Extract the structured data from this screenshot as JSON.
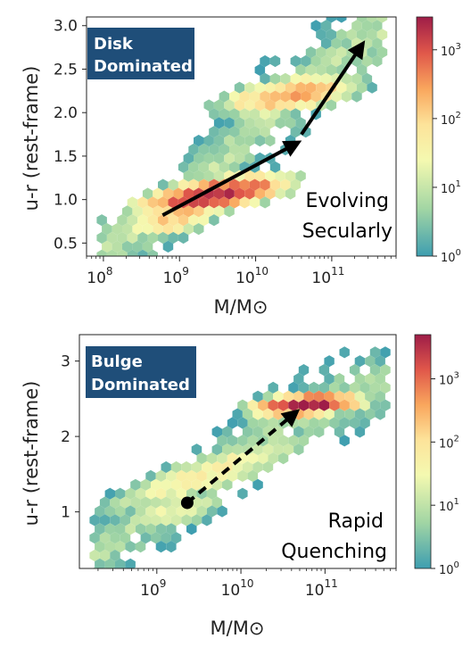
{
  "chart_data": [
    {
      "type": "heatmap",
      "panel": "top",
      "tag": [
        "Disk",
        "Dominated"
      ],
      "annotation": [
        "Evolving",
        "Secularly"
      ],
      "xlabel": "M/M⊙",
      "ylabel": "u-r (rest-frame)",
      "xscale": "log",
      "xlim": [
        60000000,
        700000000000
      ],
      "ylim": [
        0.35,
        3.1
      ],
      "xticks": [
        {
          "v": 100000000,
          "m": "10",
          "e": "8"
        },
        {
          "v": 1000000000,
          "m": "10",
          "e": "9"
        },
        {
          "v": 10000000000,
          "m": "10",
          "e": "10"
        },
        {
          "v": 100000000000,
          "m": "10",
          "e": "11"
        }
      ],
      "yticks": [
        "0.5",
        "1.0",
        "1.5",
        "2.0",
        "2.5",
        "3.0"
      ],
      "colorbar": {
        "scale": "log",
        "max": 3000,
        "ticks": [
          {
            "m": "10",
            "e": "0"
          },
          {
            "m": "10",
            "e": "1"
          },
          {
            "m": "10",
            "e": "2"
          },
          {
            "m": "10",
            "e": "3"
          }
        ]
      },
      "arrows": [
        {
          "style": "solid",
          "from": [
            600000000,
            0.82
          ],
          "to": [
            35000000000,
            1.65
          ]
        },
        {
          "style": "solid",
          "from": [
            40000000000,
            1.75
          ],
          "to": [
            250000000000,
            2.78
          ]
        }
      ],
      "clusters": [
        {
          "x": 2800000000,
          "y": 1.05,
          "amp": 3.3,
          "sx": 0.55,
          "sy": 0.13,
          "rho": 0.6
        },
        {
          "x": 28000000000,
          "y": 2.2,
          "amp": 2.4,
          "sx": 0.55,
          "sy": 0.14,
          "rho": 0.5
        },
        {
          "x": 700000000,
          "y": 0.75,
          "amp": 2.0,
          "sx": 0.4,
          "sy": 0.12,
          "rho": 0.3
        }
      ],
      "envelope": [
        [
          150000000,
          0.5
        ],
        [
          1300000000,
          1.0
        ],
        [
          15000000000,
          2.0
        ],
        [
          300000000000,
          2.85
        ]
      ]
    },
    {
      "type": "heatmap",
      "panel": "bottom",
      "tag": [
        "Bulge",
        "Dominated"
      ],
      "annotation": [
        "Rapid",
        "Quenching"
      ],
      "xlabel": "M/M⊙",
      "ylabel": "u-r (rest-frame)",
      "xscale": "log",
      "xlim": [
        120000000,
        700000000000
      ],
      "ylim": [
        0.25,
        3.35
      ],
      "xticks": [
        {
          "v": 1000000000,
          "m": "10",
          "e": "9"
        },
        {
          "v": 10000000000,
          "m": "10",
          "e": "10"
        },
        {
          "v": 100000000000,
          "m": "10",
          "e": "11"
        }
      ],
      "yticks": [
        "1",
        "2",
        "3"
      ],
      "colorbar": {
        "scale": "log",
        "max": 5000,
        "ticks": [
          {
            "m": "10",
            "e": "0"
          },
          {
            "m": "10",
            "e": "1"
          },
          {
            "m": "10",
            "e": "2"
          },
          {
            "m": "10",
            "e": "3"
          }
        ]
      },
      "arrows": [
        {
          "style": "dashed",
          "from": [
            2300000000,
            1.12
          ],
          "to": [
            45000000000,
            2.32
          ],
          "start_dot": true
        }
      ],
      "clusters": [
        {
          "x": 60000000000,
          "y": 2.42,
          "amp": 3.7,
          "sx": 0.35,
          "sy": 0.08,
          "rho": 0.3
        },
        {
          "x": 4000000000,
          "y": 1.5,
          "amp": 1.7,
          "sx": 0.8,
          "sy": 0.35,
          "rho": 0.85
        },
        {
          "x": 1500000000,
          "y": 1.0,
          "amp": 1.4,
          "sx": 0.5,
          "sy": 0.2,
          "rho": 0.6
        }
      ],
      "envelope": [
        [
          300000000,
          0.6
        ],
        [
          3000000000,
          1.4
        ],
        [
          30000000000,
          2.2
        ],
        [
          300000000000,
          2.6
        ]
      ]
    }
  ]
}
